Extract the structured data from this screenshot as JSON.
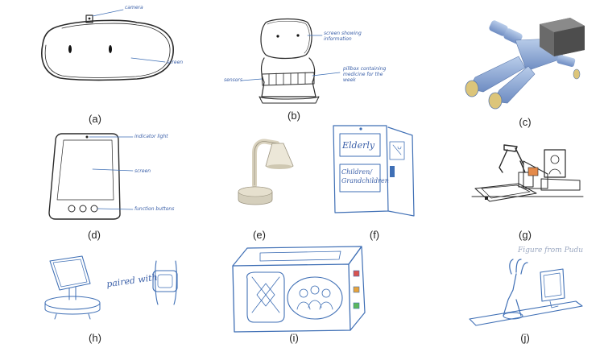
{
  "captions": [
    "(a)",
    "(b)",
    "(c)",
    "(d)",
    "(e)",
    "(f)",
    "(g)",
    "(h)",
    "(i)",
    "(j)"
  ],
  "a": {
    "camera": "camera",
    "screen": "screen"
  },
  "b": {
    "screen": "screen showing",
    "screen2": "information",
    "pillbox": "pillbox containing",
    "pillbox2": "medicine for the",
    "pillbox3": "week",
    "sensor": "sensors"
  },
  "d": {
    "indicator": "indicator light",
    "screen": "screen",
    "buttons": "function buttons"
  },
  "f": {
    "elderly": "Elderly",
    "children": "Children/",
    "grandchildren": "Grandchildren"
  },
  "h": {
    "paired": "paired with"
  },
  "j": {
    "figure": "Figure from Pudu"
  }
}
